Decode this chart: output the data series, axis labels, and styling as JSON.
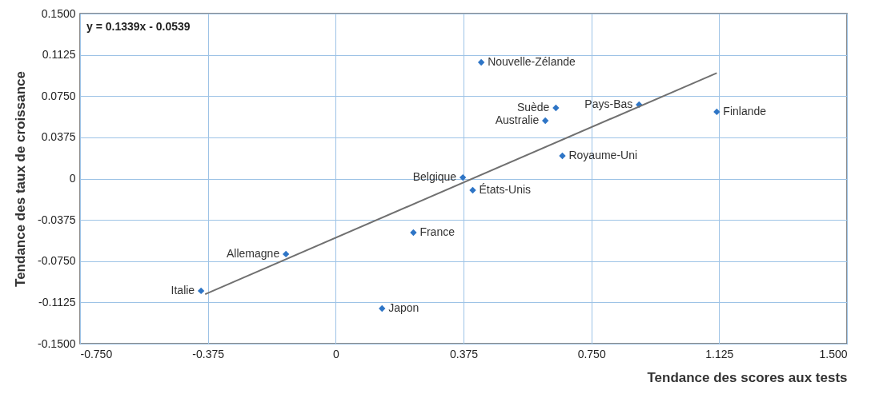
{
  "chart_data": {
    "type": "scatter",
    "xlabel": "Tendance des scores aux tests",
    "ylabel": "Tendance des taux de croissance",
    "xlim": [
      -0.75,
      1.5
    ],
    "ylim": [
      -0.15,
      0.15
    ],
    "xticks": [
      {
        "value": -0.75,
        "label": "-0.750"
      },
      {
        "value": -0.375,
        "label": "-0.375"
      },
      0,
      {
        "value": 0.375,
        "label": "0.375"
      },
      {
        "value": 0.75,
        "label": "0.750"
      },
      {
        "value": 1.125,
        "label": "1.125"
      },
      {
        "value": 1.5,
        "label": "1.500"
      }
    ],
    "yticks": [
      {
        "value": -0.15,
        "label": "-0.1500"
      },
      {
        "value": -0.1125,
        "label": "-0.1125"
      },
      {
        "value": -0.075,
        "label": "-0.0750"
      },
      {
        "value": -0.0375,
        "label": "-0.0375"
      },
      0,
      {
        "value": 0.0375,
        "label": "0.0375"
      },
      {
        "value": 0.075,
        "label": "0.0750"
      },
      {
        "value": 0.1125,
        "label": "0.1125"
      },
      {
        "value": 0.15,
        "label": "0.1500"
      }
    ],
    "grid": true,
    "series": [
      {
        "marker": "diamond",
        "color": "#2e75c6",
        "x": [
          0.427,
          0.646,
          0.615,
          0.89,
          1.118,
          0.665,
          0.373,
          0.402,
          0.228,
          -0.146,
          -0.395,
          0.136
        ],
        "values": [
          0.1057,
          0.0643,
          0.0527,
          0.0672,
          0.0607,
          0.0207,
          0.001,
          -0.0105,
          -0.049,
          -0.0686,
          -0.102,
          -0.118
        ]
      },
      {
        "type": "line",
        "color": "#707070",
        "x": [
          -0.383,
          1.118
        ],
        "values": [
          -0.105,
          0.096
        ]
      }
    ],
    "annotations": [
      "y = 0.1339x - 0.0539",
      {
        "text": "Nouvelle-Zélande",
        "x": 0.427,
        "y": 0.1057
      },
      {
        "text": "Suède",
        "x": 0.646,
        "y": 0.0643
      },
      {
        "text": "Australie",
        "x": 0.615,
        "y": 0.0527
      },
      {
        "text": "Pays-Bas",
        "x": 0.89,
        "y": 0.0672
      },
      {
        "text": "Finlande",
        "x": 1.118,
        "y": 0.0607
      },
      {
        "text": "Royaume-Uni",
        "x": 0.665,
        "y": 0.0207
      },
      {
        "text": "Belgique",
        "x": 0.373,
        "y": 0.001
      },
      {
        "text": "États-Unis",
        "x": 0.402,
        "y": -0.0105
      },
      {
        "text": "France",
        "x": 0.228,
        "y": -0.049
      },
      {
        "text": "Allemagne",
        "x": -0.146,
        "y": -0.0686
      },
      {
        "text": "Italie",
        "x": -0.395,
        "y": -0.102
      },
      {
        "text": "Japon",
        "x": 0.136,
        "y": -0.118
      }
    ]
  }
}
